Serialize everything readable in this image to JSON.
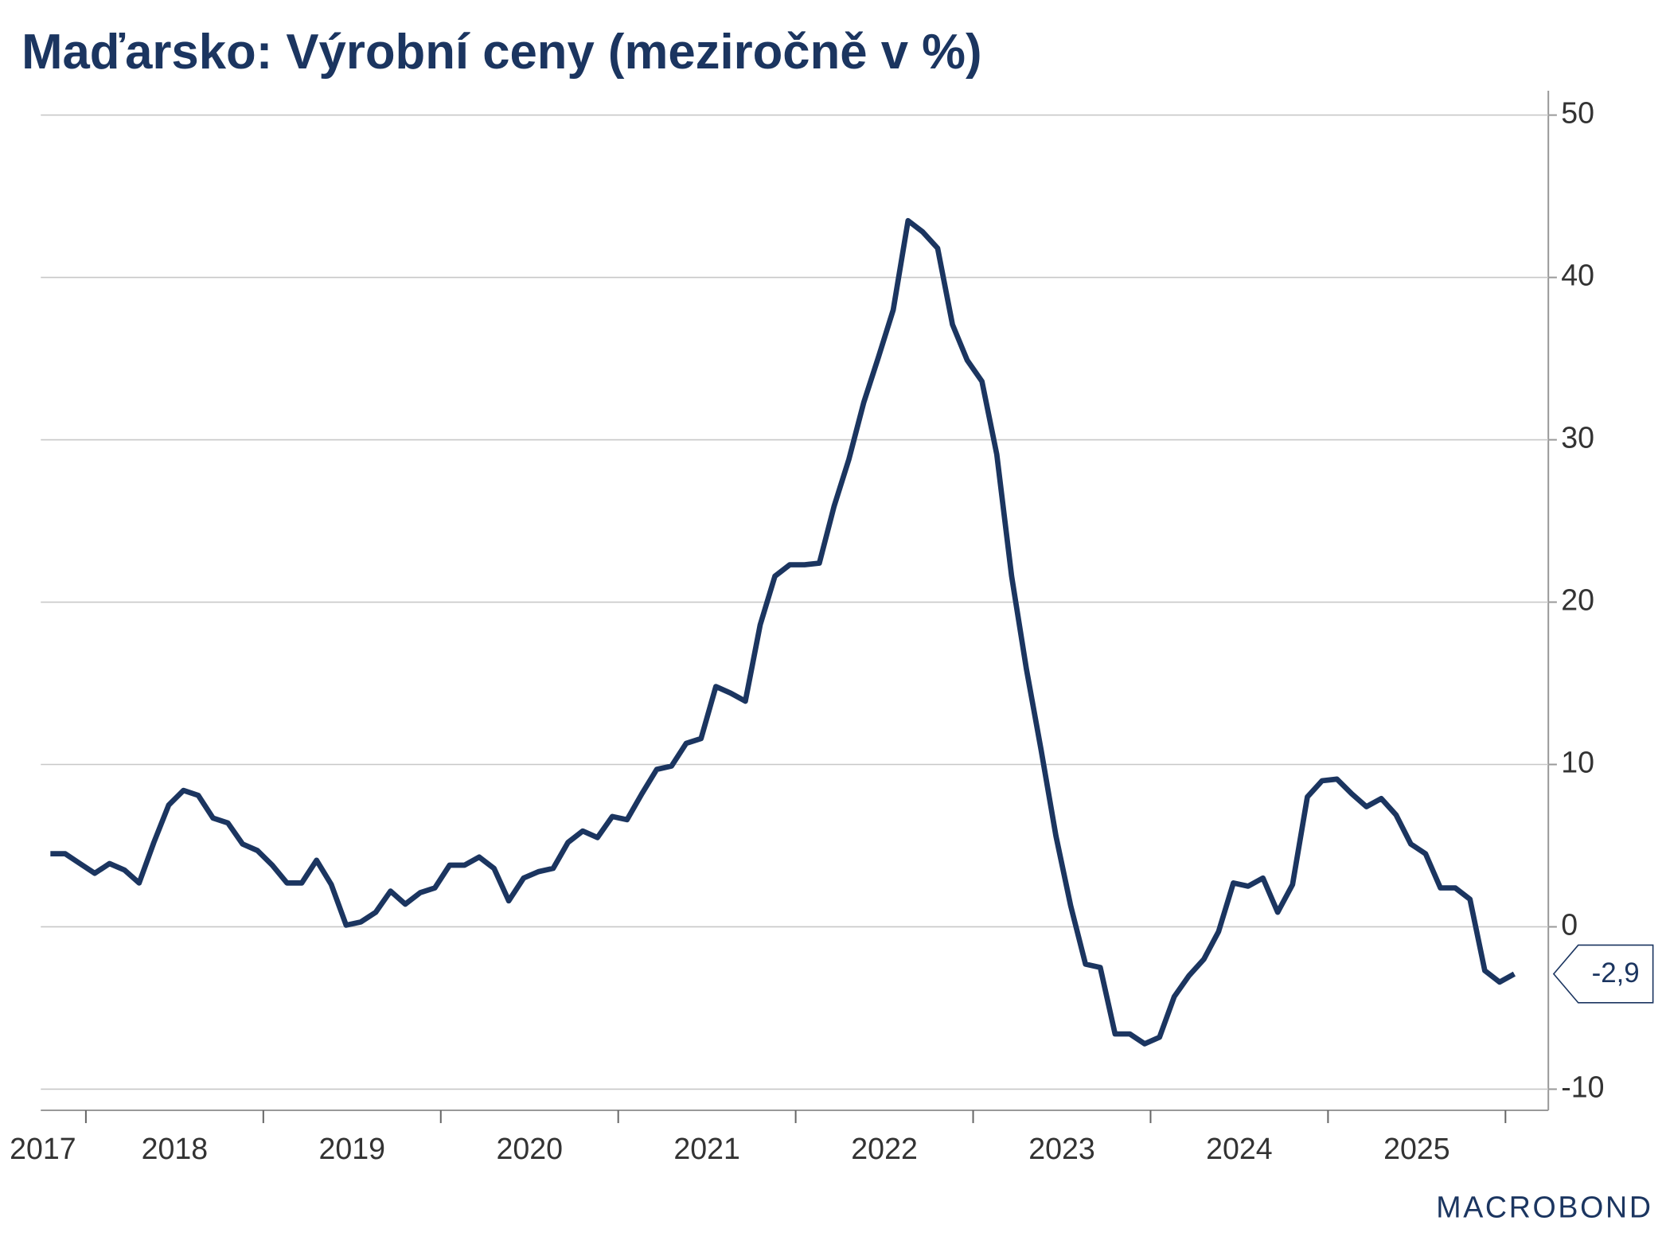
{
  "chart_data": {
    "type": "line",
    "title": "Maďarsko: Výrobní ceny (meziročně v %)",
    "source": "MACROBOND",
    "x_labels": [
      "2017",
      "2018",
      "2019",
      "2020",
      "2021",
      "2022",
      "2023",
      "2024",
      "2025"
    ],
    "series": [
      {
        "name": "Výrobní ceny",
        "color": "#1b3560",
        "values": [
          4.5,
          4.5,
          3.9,
          3.3,
          3.9,
          3.5,
          2.7,
          5.2,
          7.5,
          8.4,
          8.1,
          6.7,
          6.4,
          5.1,
          4.7,
          3.8,
          2.7,
          2.7,
          4.1,
          2.6,
          0.1,
          0.3,
          0.9,
          2.2,
          1.4,
          2.1,
          2.4,
          3.8,
          3.8,
          4.3,
          3.6,
          1.6,
          3.0,
          3.4,
          3.6,
          5.2,
          5.9,
          5.5,
          6.8,
          6.6,
          8.2,
          9.7,
          9.9,
          11.3,
          11.6,
          14.8,
          14.4,
          13.9,
          18.6,
          21.6,
          22.3,
          22.3,
          22.4,
          25.9,
          28.8,
          32.3,
          35.1,
          38.0,
          43.5,
          42.8,
          41.8,
          37.1,
          34.9,
          33.6,
          29.1,
          21.6,
          15.9,
          10.9,
          5.6,
          1.3,
          -2.3,
          -2.5,
          -6.6,
          -6.6,
          -7.2,
          -6.8,
          -4.3,
          -3.0,
          -2.0,
          -0.3,
          2.7,
          2.5,
          3.0,
          0.9,
          2.6,
          8.0,
          9.0,
          9.1,
          8.2,
          7.4,
          7.9,
          6.9,
          5.1,
          4.5,
          2.4,
          2.4,
          1.7,
          -2.7,
          -3.4,
          -2.9
        ],
        "value_labels": [
          null,
          null,
          null,
          null,
          null,
          null,
          null,
          null,
          null,
          null,
          null,
          null,
          null,
          null,
          null,
          null,
          null,
          null,
          null,
          null,
          null,
          null,
          null,
          null,
          null,
          null,
          null,
          null,
          null,
          null,
          null,
          null,
          null,
          null,
          null,
          null,
          null,
          null,
          null,
          null,
          null,
          null,
          null,
          null,
          null,
          null,
          null,
          null,
          null,
          null,
          null,
          null,
          null,
          null,
          null,
          null,
          null,
          null,
          null,
          null,
          null,
          null,
          null,
          null,
          null,
          null,
          null,
          null,
          null,
          null,
          null,
          null,
          null,
          null,
          null,
          null,
          null,
          null,
          null,
          null,
          null,
          null,
          null,
          null,
          null,
          null,
          null,
          null,
          null,
          null,
          null,
          null,
          null,
          null,
          null,
          null,
          null,
          null,
          null,
          "-2,9"
        ]
      }
    ],
    "ylim": [
      -11.3,
      51.5
    ],
    "yticks": [
      -10,
      0,
      10,
      20,
      30,
      40,
      50
    ],
    "grid": true,
    "y_axis_side": "right"
  }
}
